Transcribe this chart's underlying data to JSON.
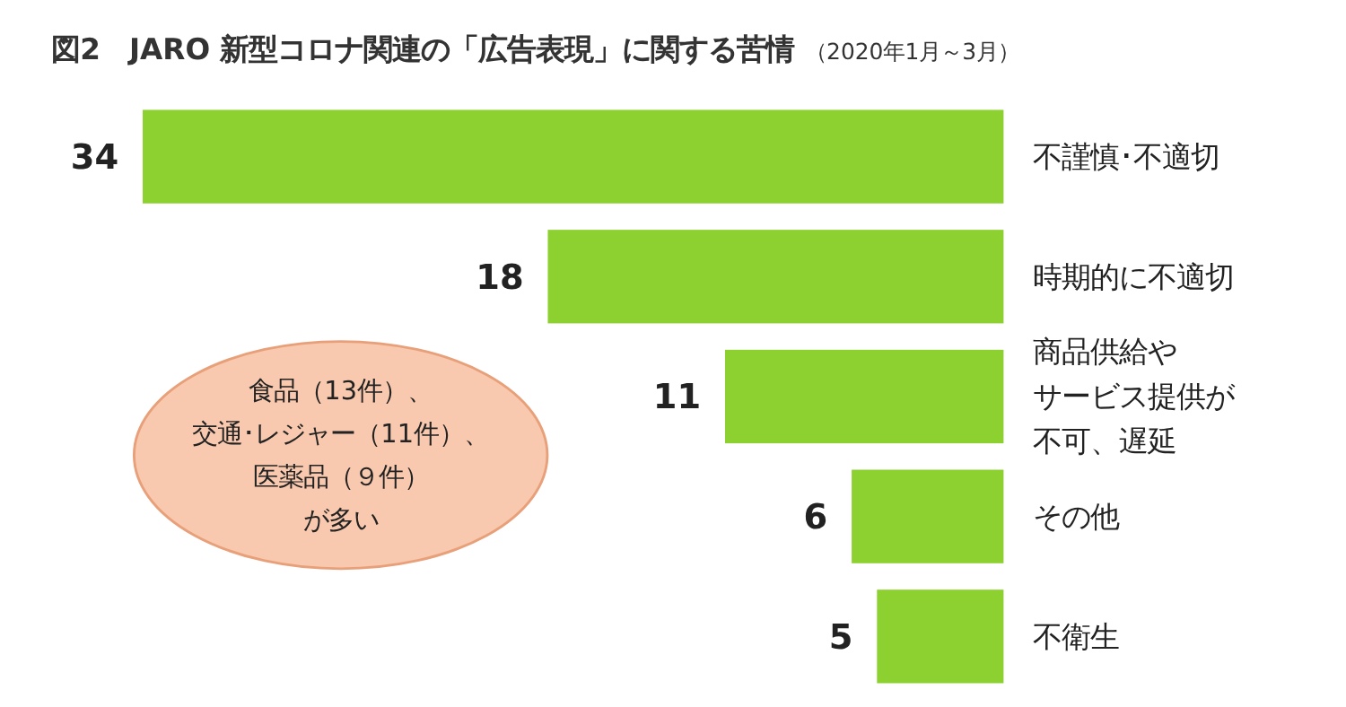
{
  "chart_data": {
    "type": "bar",
    "orientation": "horizontal",
    "title": "図2　JARO 新型コロナ関連の「広告表現」に関する苦情",
    "subtitle": "（2020年1月～3月）",
    "categories": [
      "不謹慎･不適切",
      "時期的に不適切",
      "商品供給やサービス提供が不可、遅延",
      "その他",
      "不衛生"
    ],
    "values": [
      34,
      18,
      11,
      6,
      5
    ],
    "color": "#8cd130",
    "data_labels": true,
    "annotations": [
      "食品（13件）、交通･レジャー（11件）、医薬品（９件）が多い"
    ]
  }
}
